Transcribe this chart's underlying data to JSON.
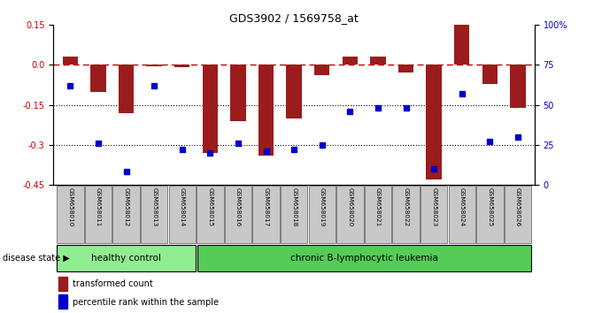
{
  "title": "GDS3902 / 1569758_at",
  "samples": [
    "GSM658010",
    "GSM658011",
    "GSM658012",
    "GSM658013",
    "GSM658014",
    "GSM658015",
    "GSM658016",
    "GSM658017",
    "GSM658018",
    "GSM658019",
    "GSM658020",
    "GSM658021",
    "GSM658022",
    "GSM658023",
    "GSM658024",
    "GSM658025",
    "GSM658026"
  ],
  "bar_values": [
    0.03,
    -0.1,
    -0.18,
    -0.005,
    -0.01,
    -0.33,
    -0.21,
    -0.34,
    -0.2,
    -0.04,
    0.03,
    0.03,
    -0.03,
    -0.43,
    0.15,
    -0.07,
    -0.16
  ],
  "percentile_values": [
    62,
    26,
    8,
    62,
    22,
    20,
    26,
    21,
    22,
    25,
    46,
    48,
    48,
    10,
    57,
    27,
    30
  ],
  "ylim_left": [
    -0.45,
    0.15
  ],
  "ylim_right": [
    0,
    100
  ],
  "yticks_left": [
    -0.45,
    -0.3,
    -0.15,
    0.0,
    0.15
  ],
  "yticks_right": [
    0,
    25,
    50,
    75,
    100
  ],
  "bar_color": "#9B1C1C",
  "dot_color": "#0000CC",
  "hline_color": "#CC0000",
  "healthy_color": "#90EE90",
  "leukemia_color": "#55CC55",
  "label_bg_color": "#C8C8C8",
  "healthy_count": 5,
  "leukemia_count": 12,
  "healthy_label": "healthy control",
  "leukemia_label": "chronic B-lymphocytic leukemia",
  "disease_state_label": "disease state",
  "legend1_color": "#9B1C1C",
  "legend2_color": "#0000CC",
  "legend1": "transformed count",
  "legend2": "percentile rank within the sample",
  "fig_width": 6.71,
  "fig_height": 3.54
}
